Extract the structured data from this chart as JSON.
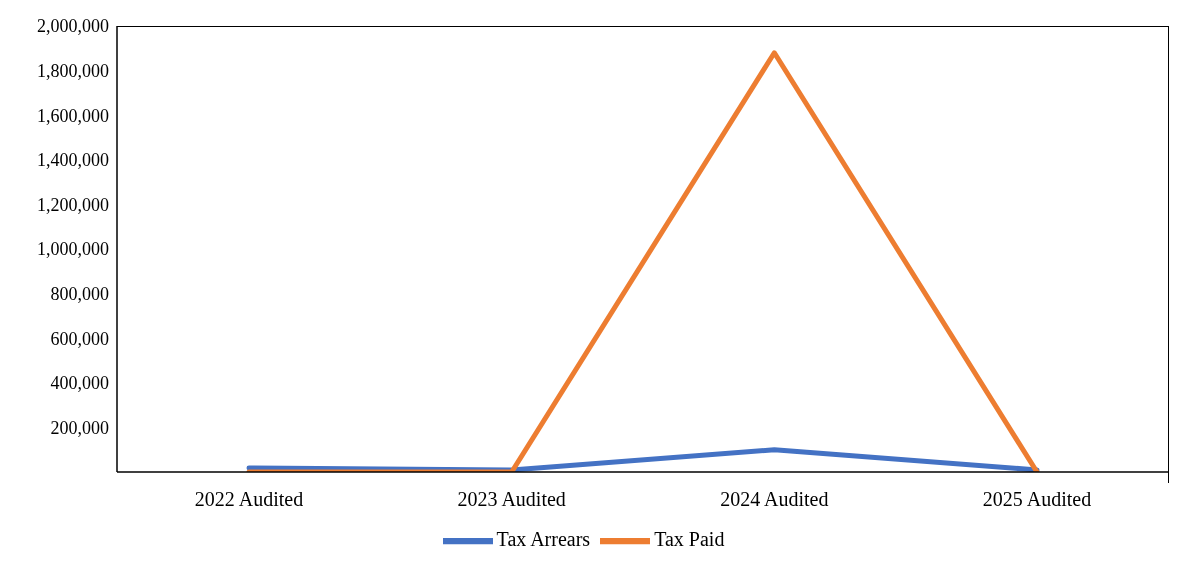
{
  "chart_data": {
    "type": "line",
    "categories": [
      "2022 Audited",
      "2023 Audited",
      "2024 Audited",
      "2025 Audited"
    ],
    "series": [
      {
        "name": "Tax Arrears",
        "color": "#4472c4",
        "values": [
          18000,
          9000,
          100000,
          9000
        ]
      },
      {
        "name": "Tax Paid",
        "color": "#ed7d31",
        "values": [
          0,
          0,
          1880000,
          0
        ]
      }
    ],
    "ylim": [
      0,
      2000000
    ],
    "yticks": [
      {
        "value": 200000,
        "label": "200,000"
      },
      {
        "value": 400000,
        "label": "400,000"
      },
      {
        "value": 600000,
        "label": "600,000"
      },
      {
        "value": 800000,
        "label": "800,000"
      },
      {
        "value": 1000000,
        "label": "1,000,000"
      },
      {
        "value": 1200000,
        "label": "1,200,000"
      },
      {
        "value": 1400000,
        "label": "1,400,000"
      },
      {
        "value": 1600000,
        "label": "1,600,000"
      },
      {
        "value": 1800000,
        "label": "1,800,000"
      },
      {
        "value": 2000000,
        "label": "2,000,000"
      }
    ],
    "grid": false,
    "legend": "bottom",
    "marker": "none",
    "line_style": "solid"
  }
}
